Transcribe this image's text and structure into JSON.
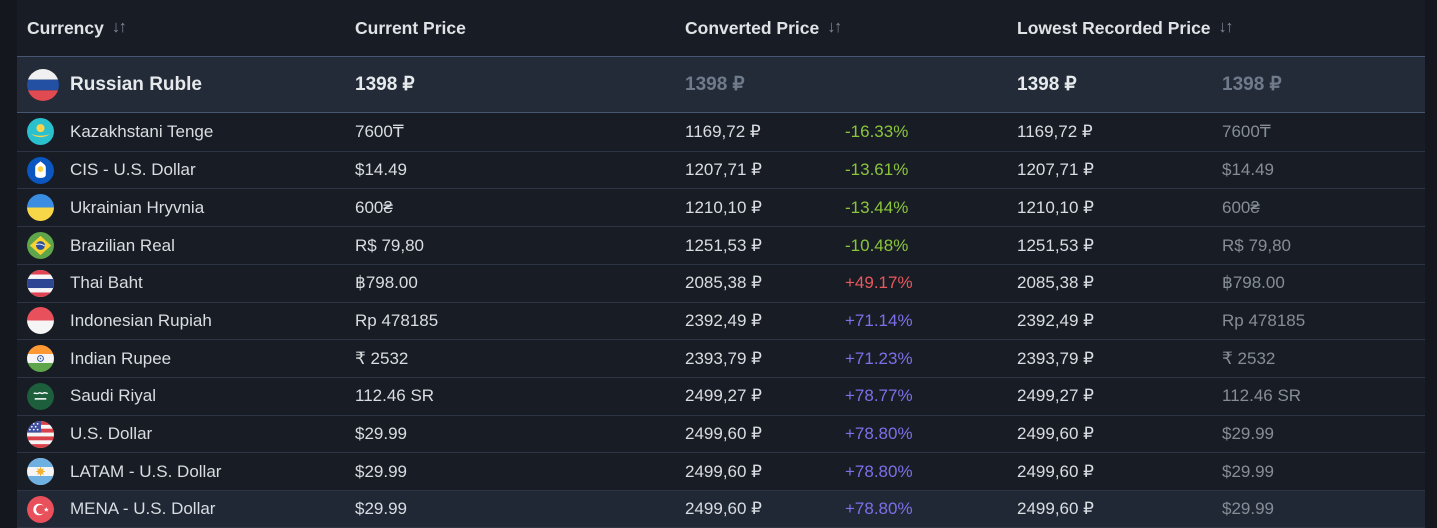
{
  "theme": {
    "page_background": "#14171d",
    "highlight_row_background": "#232b38",
    "row_separator": "#2d3544"
  },
  "pct_colors": {
    "green": "#8bc53c",
    "red": "#e8585c",
    "purple": "#7d6fe8"
  },
  "table": {
    "sort_icon": "↓↑",
    "headers": [
      {
        "label": "Currency",
        "sortable": true
      },
      {
        "label": "Current Price",
        "sortable": false
      },
      {
        "label": "Converted Price",
        "sortable": true
      },
      {
        "label": "Lowest Recorded Price",
        "sortable": true
      }
    ],
    "rows": [
      {
        "flag": "russia",
        "currency": "Russian Ruble",
        "current": "1398 ₽",
        "converted": "1398 ₽",
        "pct": "",
        "pct_color": "",
        "lowest": "1398 ₽",
        "original": "1398 ₽",
        "highlight": true,
        "hovered": false
      },
      {
        "flag": "kazakhstan",
        "currency": "Kazakhstani Tenge",
        "current": "7600₸",
        "converted": "1169,72 ₽",
        "pct": "-16.33%",
        "pct_color": "green",
        "lowest": "1169,72 ₽",
        "original": "7600₸",
        "highlight": false,
        "hovered": false
      },
      {
        "flag": "cis",
        "currency": "CIS - U.S. Dollar",
        "current": "$14.49",
        "converted": "1207,71 ₽",
        "pct": "-13.61%",
        "pct_color": "green",
        "lowest": "1207,71 ₽",
        "original": "$14.49",
        "highlight": false,
        "hovered": false
      },
      {
        "flag": "ukraine",
        "currency": "Ukrainian Hryvnia",
        "current": "600₴",
        "converted": "1210,10 ₽",
        "pct": "-13.44%",
        "pct_color": "green",
        "lowest": "1210,10 ₽",
        "original": "600₴",
        "highlight": false,
        "hovered": false
      },
      {
        "flag": "brazil",
        "currency": "Brazilian Real",
        "current": "R$ 79,80",
        "converted": "1251,53 ₽",
        "pct": "-10.48%",
        "pct_color": "green",
        "lowest": "1251,53 ₽",
        "original": "R$ 79,80",
        "highlight": false,
        "hovered": false
      },
      {
        "flag": "thailand",
        "currency": "Thai Baht",
        "current": "฿798.00",
        "converted": "2085,38 ₽",
        "pct": "+49.17%",
        "pct_color": "red",
        "lowest": "2085,38 ₽",
        "original": "฿798.00",
        "highlight": false,
        "hovered": false
      },
      {
        "flag": "indonesia",
        "currency": "Indonesian Rupiah",
        "current": "Rp 478185",
        "converted": "2392,49 ₽",
        "pct": "+71.14%",
        "pct_color": "purple",
        "lowest": "2392,49 ₽",
        "original": "Rp 478185",
        "highlight": false,
        "hovered": false
      },
      {
        "flag": "india",
        "currency": "Indian Rupee",
        "current": "₹ 2532",
        "converted": "2393,79 ₽",
        "pct": "+71.23%",
        "pct_color": "purple",
        "lowest": "2393,79 ₽",
        "original": "₹ 2532",
        "highlight": false,
        "hovered": false
      },
      {
        "flag": "saudi-arabia",
        "currency": "Saudi Riyal",
        "current": "112.46 SR",
        "converted": "2499,27 ₽",
        "pct": "+78.77%",
        "pct_color": "purple",
        "lowest": "2499,27 ₽",
        "original": "112.46 SR",
        "highlight": false,
        "hovered": false
      },
      {
        "flag": "usa",
        "currency": "U.S. Dollar",
        "current": "$29.99",
        "converted": "2499,60 ₽",
        "pct": "+78.80%",
        "pct_color": "purple",
        "lowest": "2499,60 ₽",
        "original": "$29.99",
        "highlight": false,
        "hovered": false
      },
      {
        "flag": "argentina",
        "currency": "LATAM - U.S. Dollar",
        "current": "$29.99",
        "converted": "2499,60 ₽",
        "pct": "+78.80%",
        "pct_color": "purple",
        "lowest": "2499,60 ₽",
        "original": "$29.99",
        "highlight": false,
        "hovered": false
      },
      {
        "flag": "turkey",
        "currency": "MENA - U.S. Dollar",
        "current": "$29.99",
        "converted": "2499,60 ₽",
        "pct": "+78.80%",
        "pct_color": "purple",
        "lowest": "2499,60 ₽",
        "original": "$29.99",
        "highlight": false,
        "hovered": true
      }
    ]
  }
}
